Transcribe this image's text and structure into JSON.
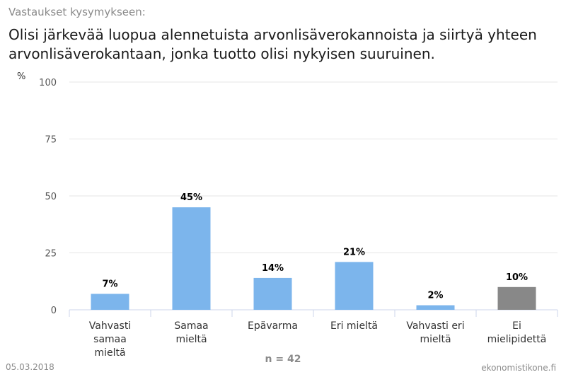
{
  "header": {
    "subtitle": "Vastaukset kysymykseen:",
    "title": "Olisi järkevää luopua alennetuista arvonlisäverokannoista ja siirtyä yhteen arvonlisäverokantaan, jonka tuotto olisi nykyisen suuruinen."
  },
  "footer": {
    "date": "05.03.2018",
    "site": "ekonomistikone.fi",
    "n_label": "n = 42"
  },
  "colors": {
    "bar": "#7cb5ec",
    "no_opinion": "#888888"
  },
  "chart_data": {
    "type": "bar",
    "ylabel": "%",
    "ylim": [
      0,
      100
    ],
    "yticks": [
      0,
      25,
      50,
      75,
      100
    ],
    "grid": true,
    "categories": [
      [
        "Vahvasti",
        "samaa",
        "mieltä"
      ],
      [
        "Samaa",
        "mieltä"
      ],
      [
        "Epävarma"
      ],
      [
        "Eri mieltä"
      ],
      [
        "Vahvasti eri",
        "mieltä"
      ],
      [
        "Ei",
        "mielipidettä"
      ]
    ],
    "values": [
      7,
      45,
      14,
      21,
      2,
      10
    ],
    "data_labels": [
      "7%",
      "45%",
      "14%",
      "21%",
      "2%",
      "10%"
    ]
  }
}
